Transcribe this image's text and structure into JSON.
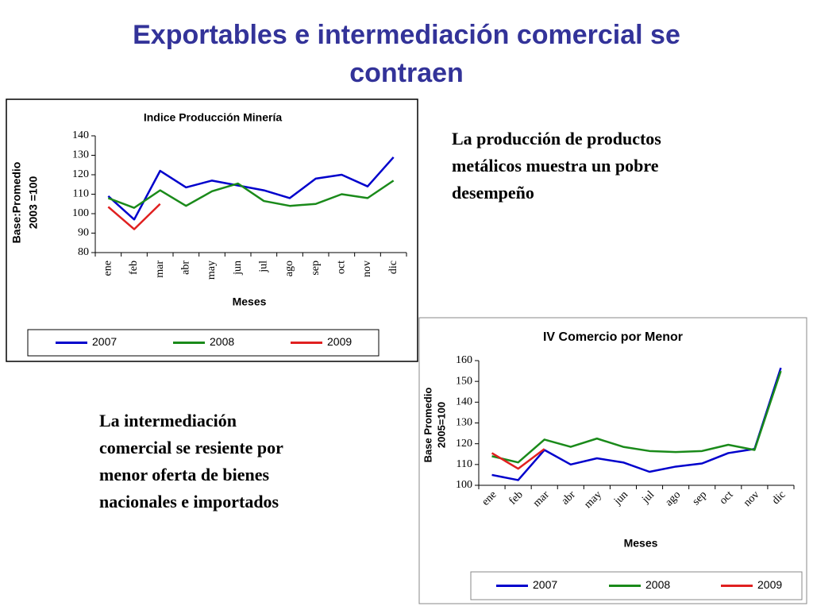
{
  "title": [
    "Exportables e intermediación comercial se",
    "contraen"
  ],
  "paragraphs": [
    {
      "lines": [
        "La producción de productos",
        "metálicos muestra un pobre",
        "desempeño"
      ]
    },
    {
      "lines": [
        "La intermediación",
        "comercial se resiente por",
        "menor oferta de bienes",
        "nacionales e importados"
      ]
    }
  ],
  "chart_data": [
    {
      "type": "line",
      "title": "Indice Producción Minería",
      "ylabel": [
        "Base:Promedio",
        "2003 =100"
      ],
      "xlabel": "Meses",
      "categories": [
        "ene",
        "feb",
        "mar",
        "abr",
        "may",
        "jun",
        "jul",
        "ago",
        "sep",
        "oct",
        "nov",
        "dic"
      ],
      "ylim": [
        80,
        140
      ],
      "yticks": [
        80,
        90,
        100,
        110,
        120,
        130,
        140
      ],
      "series": [
        {
          "name": "2007",
          "color": "#0000cc",
          "values": [
            109,
            97,
            122,
            113.5,
            117,
            114.5,
            112,
            108,
            118,
            120,
            114,
            129
          ]
        },
        {
          "name": "2008",
          "color": "#1a8a1a",
          "values": [
            108,
            103,
            112,
            104,
            111.5,
            115.5,
            106.5,
            104,
            105,
            110,
            108,
            117
          ]
        },
        {
          "name": "2009",
          "color": "#e02020",
          "values": [
            103.5,
            92,
            105,
            null,
            null,
            null,
            null,
            null,
            null,
            null,
            null,
            null
          ]
        }
      ]
    },
    {
      "type": "line",
      "title": "IV Comercio por Menor",
      "ylabel": [
        "Base Promedio",
        "2005=100"
      ],
      "xlabel": "Meses",
      "categories": [
        "ene",
        "feb",
        "mar",
        "abr",
        "may",
        "jun",
        "jul",
        "ago",
        "sep",
        "oct",
        "nov",
        "dic"
      ],
      "ylim": [
        100,
        160
      ],
      "yticks": [
        100,
        110,
        120,
        130,
        140,
        150,
        160
      ],
      "series": [
        {
          "name": "2007",
          "color": "#0000cc",
          "values": [
            105,
            102.5,
            117,
            110,
            113,
            111,
            106.5,
            109,
            110.5,
            115.5,
            117.5,
            156.5
          ]
        },
        {
          "name": "2008",
          "color": "#1a8a1a",
          "values": [
            114,
            111,
            122,
            118.5,
            122.5,
            118.5,
            116.5,
            116,
            116.5,
            119.5,
            117,
            155
          ]
        },
        {
          "name": "2009",
          "color": "#e02020",
          "values": [
            115.5,
            108,
            117.5,
            null,
            null,
            null,
            null,
            null,
            null,
            null,
            null,
            null
          ]
        }
      ]
    }
  ]
}
